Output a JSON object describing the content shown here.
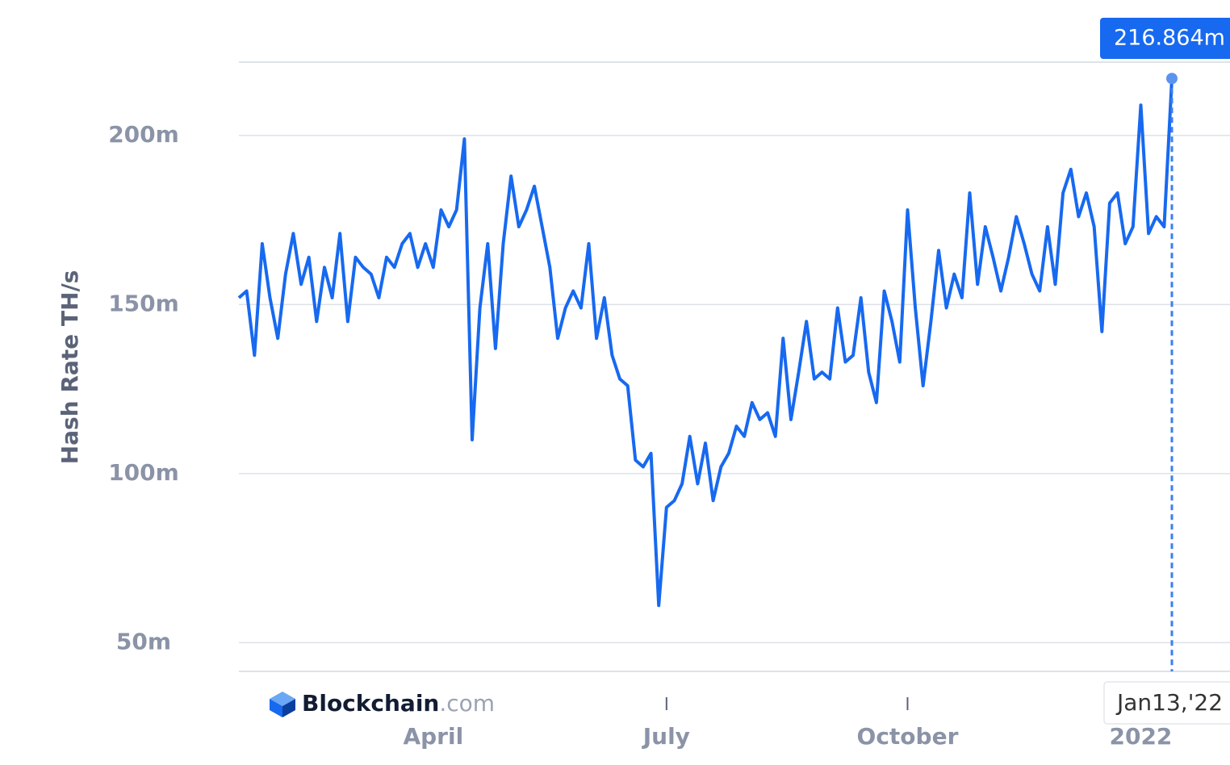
{
  "chart_data": {
    "type": "line",
    "y_axis_title": "Hash Rate TH/s",
    "brand": "Blockchain",
    "brand_suffix": ".com",
    "categories": [
      null,
      null,
      null,
      null,
      null,
      null,
      null,
      null,
      null,
      null,
      null,
      null,
      null,
      null,
      null,
      null,
      null,
      null,
      null,
      null,
      null,
      null,
      null,
      null,
      null,
      "April",
      null,
      null,
      null,
      null,
      null,
      null,
      null,
      null,
      null,
      null,
      null,
      null,
      null,
      null,
      null,
      null,
      null,
      null,
      null,
      null,
      null,
      null,
      null,
      null,
      null,
      null,
      null,
      null,
      null,
      "July",
      null,
      null,
      null,
      null,
      null,
      null,
      null,
      null,
      null,
      null,
      null,
      null,
      null,
      null,
      null,
      null,
      null,
      null,
      null,
      null,
      null,
      null,
      null,
      null,
      null,
      null,
      null,
      null,
      null,
      null,
      "October",
      null,
      null,
      null,
      null,
      null,
      null,
      null,
      null,
      null,
      null,
      null,
      null,
      null,
      null,
      null,
      null,
      null,
      null,
      null,
      null,
      null,
      null,
      null,
      null,
      null,
      null,
      null,
      null,
      null,
      "2022",
      null,
      null,
      null,
      null
    ],
    "series": [
      {
        "color": "#1769f0",
        "values": [
          152,
          154,
          135,
          168,
          152,
          140,
          159,
          171,
          156,
          164,
          145,
          161,
          152,
          171,
          145,
          164,
          161,
          159,
          152,
          164,
          161,
          168,
          171,
          161,
          168,
          161,
          178,
          173,
          178,
          199,
          110,
          149,
          168,
          137,
          168,
          188,
          173,
          178,
          185,
          173,
          161,
          140,
          149,
          154,
          149,
          168,
          140,
          152,
          135,
          128,
          126,
          104,
          102,
          106,
          61,
          90,
          92,
          97,
          111,
          97,
          109,
          92,
          102,
          106,
          114,
          111,
          121,
          116,
          118,
          111,
          140,
          116,
          130,
          145,
          128,
          130,
          128,
          149,
          133,
          135,
          152,
          130,
          121,
          154,
          145,
          133,
          178,
          149,
          126,
          145,
          166,
          149,
          159,
          152,
          183,
          156,
          173,
          164,
          154,
          164,
          176,
          168,
          159,
          154,
          173,
          156,
          183,
          190,
          176,
          183,
          173,
          142,
          180,
          183,
          168,
          173,
          209,
          171,
          176,
          173,
          216.864
        ]
      }
    ],
    "ylim": [
      41.5,
      221.7
    ],
    "yticks": [
      {
        "value": 50,
        "label": "50m"
      },
      {
        "value": 100,
        "label": "100m"
      },
      {
        "value": 150,
        "label": "150m"
      },
      {
        "value": 200,
        "label": "200m"
      }
    ],
    "grid": true,
    "tooltip": {
      "value": 216.864,
      "label": "216.864m",
      "date": "Jan13,'22"
    }
  }
}
